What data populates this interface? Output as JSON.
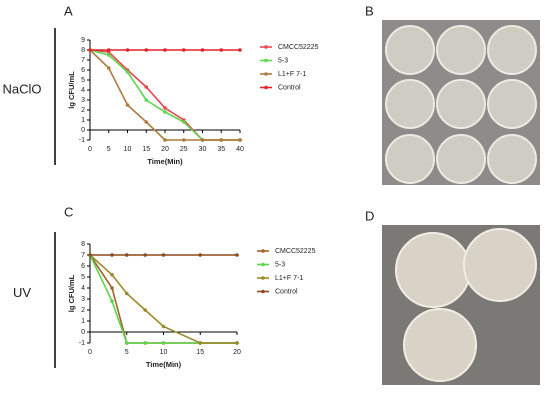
{
  "chart_data": [
    {
      "type": "line",
      "panel_label": "A",
      "row_label": "NaClO",
      "xlabel": "Time(Min)",
      "ylabel": "lg CFU/mL",
      "x": [
        0,
        5,
        10,
        15,
        20,
        25,
        30,
        35,
        40
      ],
      "xlim": [
        0,
        40
      ],
      "ylim": [
        -1,
        9
      ],
      "xticks": [
        0,
        5,
        10,
        15,
        20,
        25,
        30,
        35,
        40
      ],
      "yticks": [
        -1,
        0,
        1,
        2,
        3,
        4,
        5,
        6,
        7,
        8,
        9
      ],
      "series": [
        {
          "name": "CMCC52225",
          "color": "#e8474c",
          "values": [
            8,
            7.8,
            6,
            4.3,
            2.2,
            1,
            -1,
            -1,
            -1
          ]
        },
        {
          "name": "5-3",
          "color": "#5cd64a",
          "values": [
            8,
            7.5,
            5.8,
            3,
            1.8,
            0.8,
            -1,
            -1,
            -1
          ]
        },
        {
          "name": "L1+F 7-1",
          "color": "#b07a3c",
          "values": [
            8,
            6.2,
            2.5,
            0.8,
            -1,
            -1,
            -1,
            -1,
            -1
          ]
        },
        {
          "name": "Control",
          "color": "#e0242a",
          "values": [
            8,
            8,
            8,
            8,
            8,
            8,
            8,
            8,
            8
          ]
        }
      ]
    },
    {
      "type": "line",
      "panel_label": "C",
      "row_label": "UV",
      "xlabel": "Time(Min)",
      "ylabel": "lg CFU/mL",
      "x": [
        0,
        3,
        5,
        7.5,
        10,
        15,
        20
      ],
      "xlim": [
        0,
        20
      ],
      "ylim": [
        -1,
        8
      ],
      "xticks": [
        0,
        5,
        10,
        15,
        20
      ],
      "yticks": [
        -1,
        0,
        1,
        2,
        3,
        4,
        5,
        6,
        7,
        8
      ],
      "series": [
        {
          "name": "CMCC52225",
          "color": "#a0662e",
          "values": [
            7,
            4,
            -1,
            -1,
            -1,
            -1,
            -1
          ]
        },
        {
          "name": "5-3",
          "color": "#5cd64a",
          "values": [
            7,
            2.8,
            -1,
            -1,
            -1,
            -1,
            -1
          ]
        },
        {
          "name": "L1+F 7-1",
          "color": "#9a8a2a",
          "values": [
            7,
            5.2,
            3.5,
            2,
            0.5,
            -1,
            -1
          ]
        },
        {
          "name": "Control",
          "color": "#8a4a1e",
          "values": [
            7,
            7,
            7,
            7,
            7,
            7,
            7
          ]
        }
      ]
    }
  ],
  "photos": [
    {
      "label": "B"
    },
    {
      "label": "D"
    }
  ]
}
